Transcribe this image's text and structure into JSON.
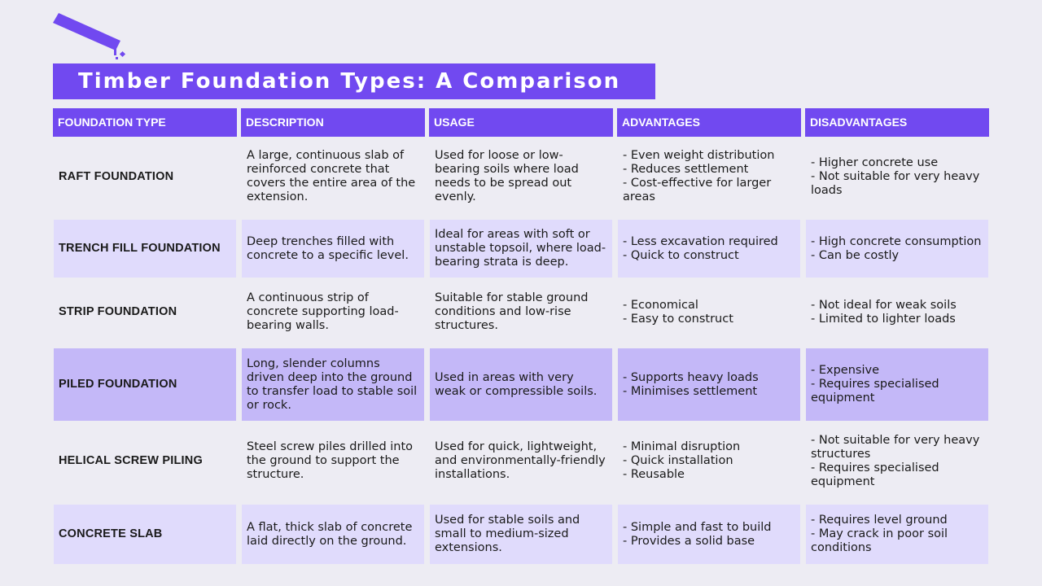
{
  "title": "Timber Foundation Types: A Comparison",
  "colors": {
    "accent": "#7149f0",
    "background": "#edecf3",
    "row_light": "#e0dbfc",
    "row_mid": "#c4b8f8"
  },
  "decoration": {
    "icon": "trowel-icon"
  },
  "table": {
    "headers": [
      "FOUNDATION TYPE",
      "DESCRIPTION",
      "USAGE",
      "ADVANTAGES",
      "DISADVANTAGES"
    ],
    "rows": [
      {
        "type": "RAFT FOUNDATION",
        "description": "A large, continuous slab of reinforced concrete that covers the entire area of the extension.",
        "usage": "Used for loose or low-bearing soils where load needs to be spread out evenly.",
        "advantages": "- Even weight distribution\n- Reduces settlement\n- Cost-effective for larger areas",
        "disadvantages": "- Higher concrete use\n- Not suitable for very heavy loads"
      },
      {
        "type": "TRENCH FILL FOUNDATION",
        "description": "Deep trenches filled with concrete to a specific level.",
        "usage": "Ideal for areas with soft or unstable topsoil, where load-bearing strata is deep.",
        "advantages": "- Less excavation required\n- Quick to construct",
        "disadvantages": "- High concrete consumption\n- Can be costly"
      },
      {
        "type": "STRIP FOUNDATION",
        "description": "A continuous strip of concrete supporting load-bearing walls.",
        "usage": "Suitable for stable ground conditions and low-rise structures.",
        "advantages": "- Economical\n- Easy to construct",
        "disadvantages": "- Not ideal for weak soils\n- Limited to lighter loads"
      },
      {
        "type": "PILED FOUNDATION",
        "description": "Long, slender columns driven deep into the ground to transfer load to stable soil or rock.",
        "usage": "Used in areas with very weak or compressible soils.",
        "advantages": "- Supports heavy loads\n- Minimises settlement",
        "disadvantages": "- Expensive\n- Requires specialised equipment"
      },
      {
        "type": "HELICAL SCREW PILING",
        "description": "Steel screw piles drilled into the ground to support the structure.",
        "usage": "Used for quick, lightweight, and environmentally-friendly installations.",
        "advantages": "- Minimal disruption\n- Quick installation\n- Reusable",
        "disadvantages": "- Not suitable for very heavy structures\n- Requires specialised equipment"
      },
      {
        "type": "CONCRETE SLAB",
        "description": "A flat, thick slab of concrete laid directly on the ground.",
        "usage": "Used for stable soils and small to medium-sized extensions.",
        "advantages": "- Simple and fast to build\n- Provides a solid base",
        "disadvantages": "- Requires level ground\n- May crack in poor soil conditions"
      }
    ]
  }
}
